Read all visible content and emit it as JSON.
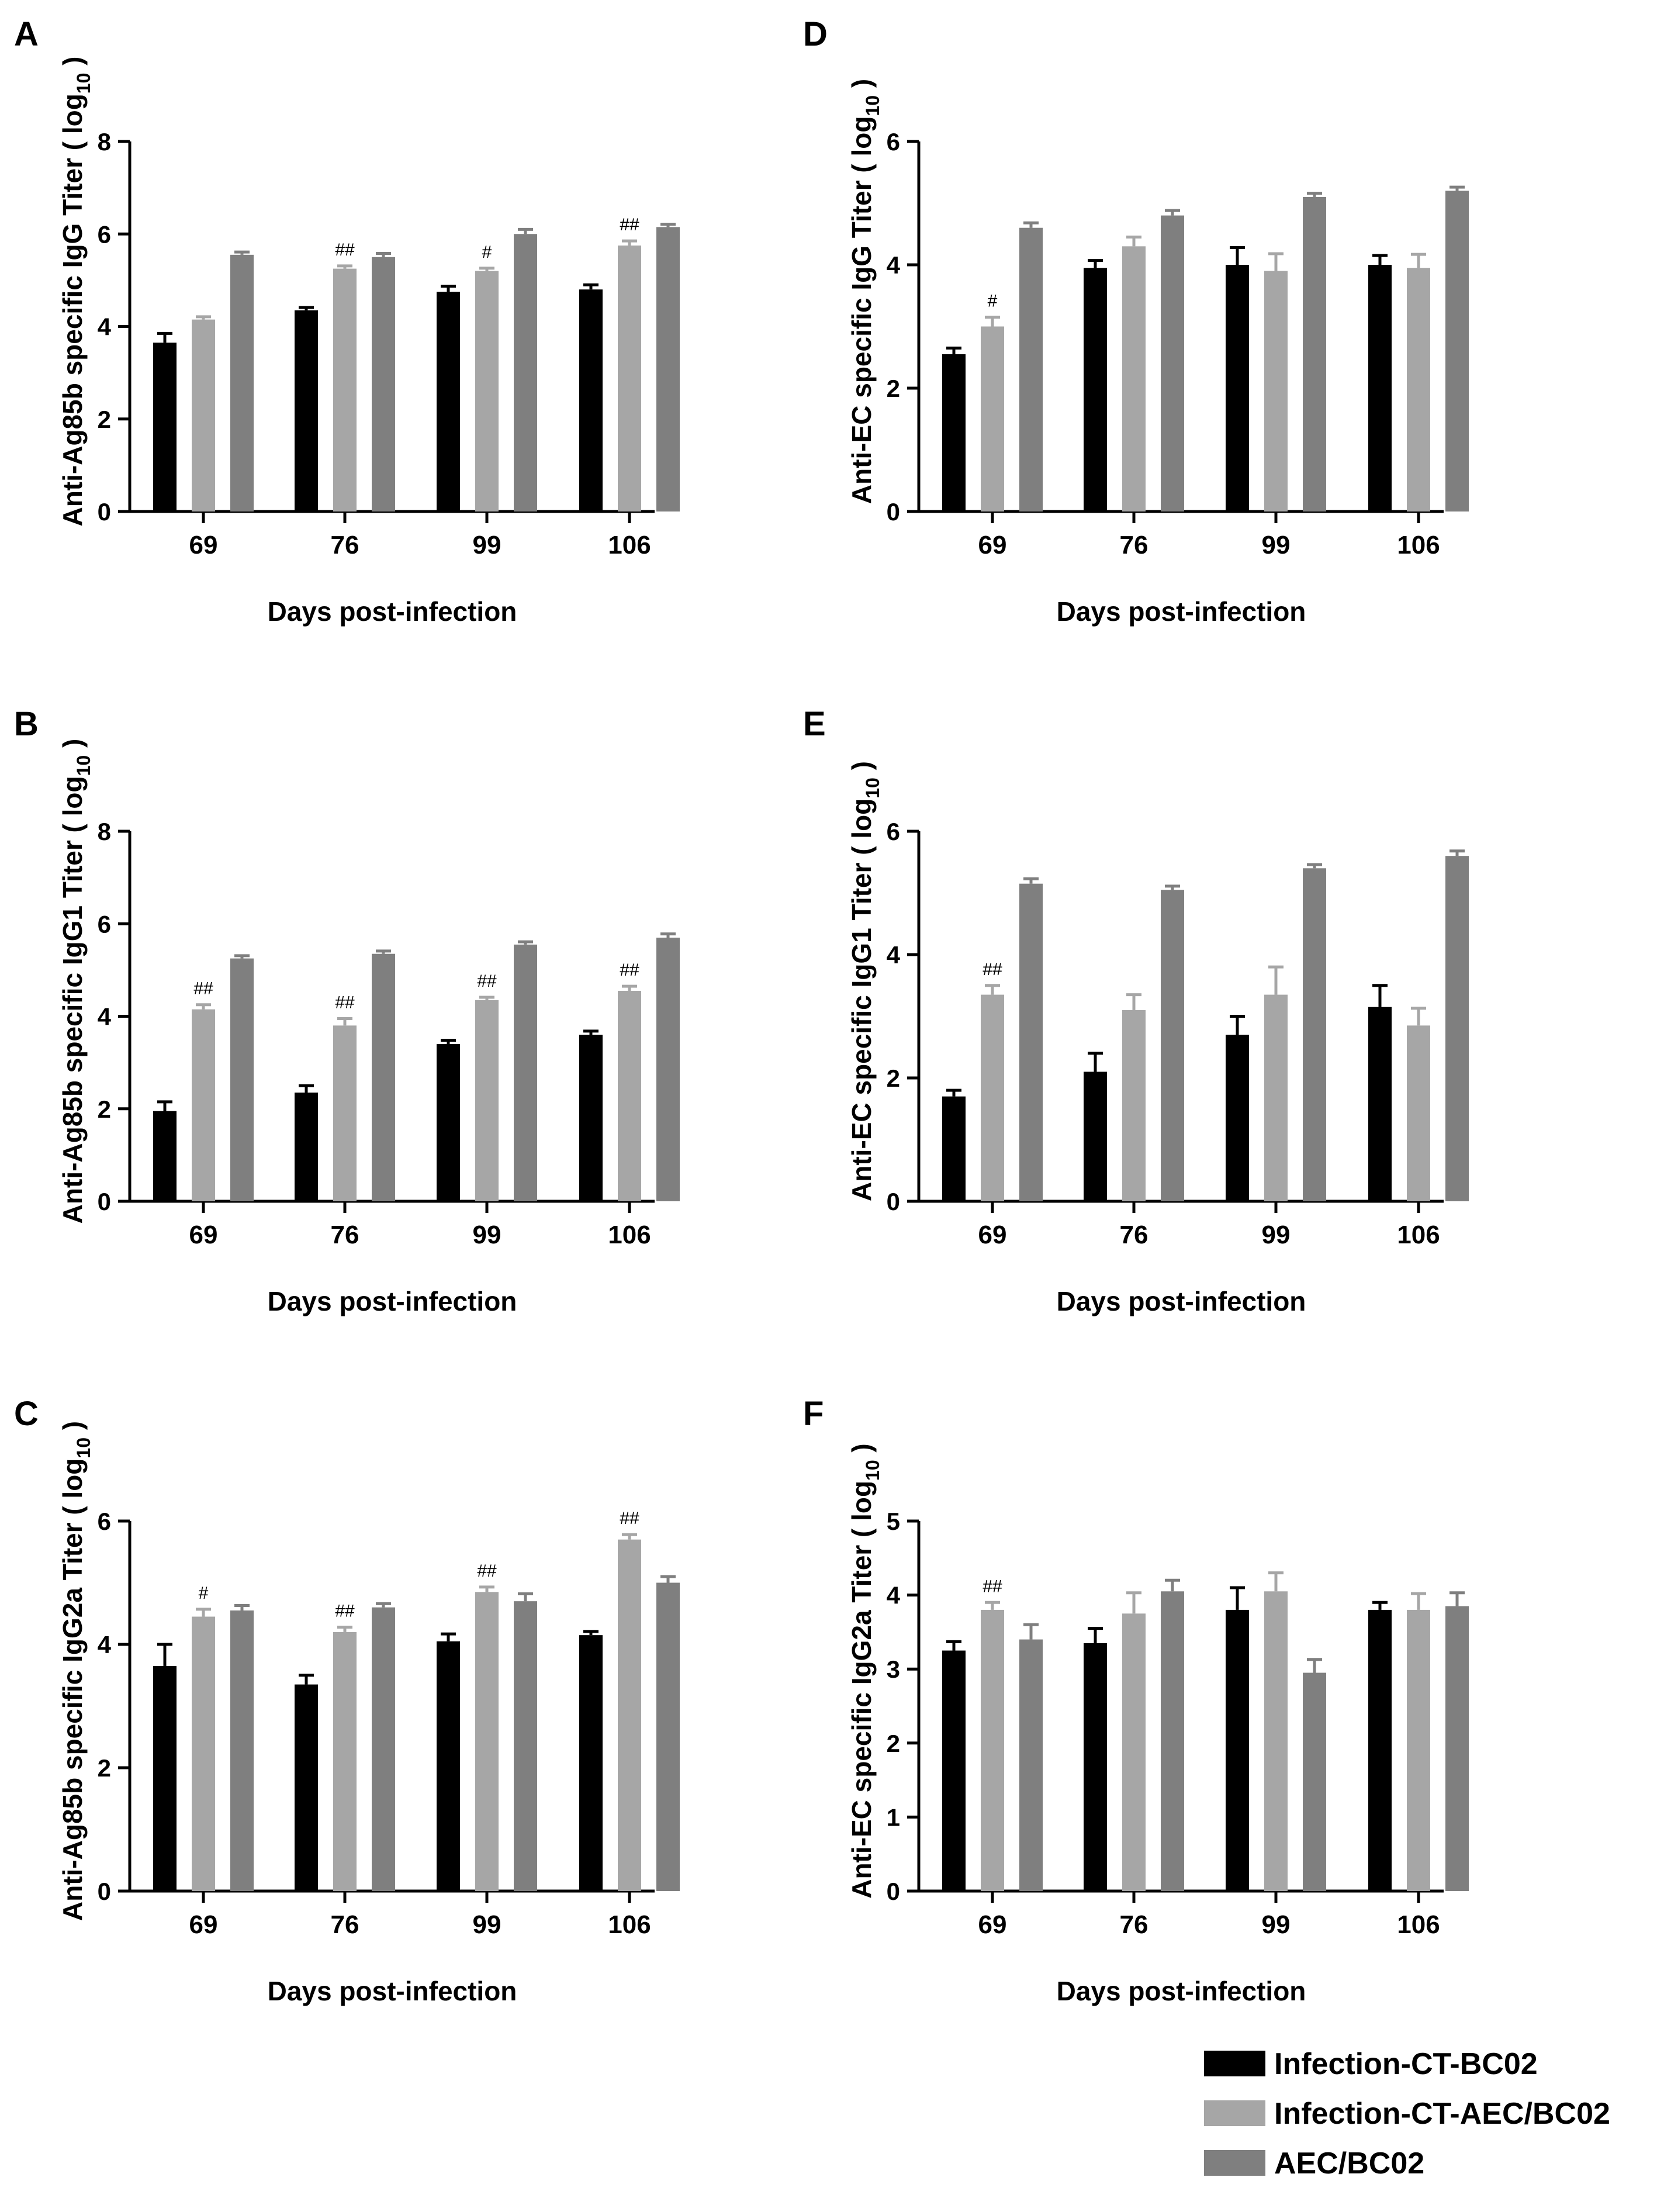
{
  "colors": {
    "Infection-CT-BC02": "#000000",
    "Infection-CT-AEC/BC02": "#a6a6a6",
    "AEC/BC02": "#7f7f7f"
  },
  "legend": {
    "items": [
      "Infection-CT-BC02",
      "Infection-CT-AEC/BC02",
      "AEC/BC02"
    ]
  },
  "chart_data": [
    {
      "panel": "A",
      "type": "bar",
      "title": "",
      "ylabel_main": "Anti-Ag85b specific IgG Titer ( log",
      "ylabel_sub": "10",
      "ylabel_end": " )",
      "xlabel": "Days post-infection",
      "categories": [
        "69",
        "76",
        "99",
        "106"
      ],
      "ylim": [
        0,
        8
      ],
      "yticks": [
        "0",
        "2",
        "4",
        "6",
        "8"
      ],
      "series": [
        {
          "name": "Infection-CT-BC02",
          "values": [
            3.65,
            4.35,
            4.75,
            4.8
          ],
          "errors": [
            0.2,
            0.06,
            0.12,
            0.1
          ]
        },
        {
          "name": "Infection-CT-AEC/BC02",
          "values": [
            4.15,
            5.25,
            5.2,
            5.75
          ],
          "errors": [
            0.06,
            0.06,
            0.06,
            0.1
          ]
        },
        {
          "name": "AEC/BC02",
          "values": [
            5.55,
            5.5,
            6.0,
            6.15
          ],
          "errors": [
            0.06,
            0.08,
            0.1,
            0.06
          ]
        }
      ],
      "annotations": [
        {
          "category": "76",
          "series": "Infection-CT-AEC/BC02",
          "text": "##"
        },
        {
          "category": "99",
          "series": "Infection-CT-AEC/BC02",
          "text": "#"
        },
        {
          "category": "106",
          "series": "Infection-CT-AEC/BC02",
          "text": "##"
        }
      ]
    },
    {
      "panel": "B",
      "type": "bar",
      "title": "",
      "ylabel_main": "Anti-Ag85b specific IgG1 Titer ( log",
      "ylabel_sub": "10",
      "ylabel_end": " )",
      "xlabel": "Days post-infection",
      "categories": [
        "69",
        "76",
        "99",
        "106"
      ],
      "ylim": [
        0,
        8
      ],
      "yticks": [
        "0",
        "2",
        "4",
        "6",
        "8"
      ],
      "series": [
        {
          "name": "Infection-CT-BC02",
          "values": [
            1.95,
            2.35,
            3.4,
            3.6
          ],
          "errors": [
            0.2,
            0.15,
            0.08,
            0.08
          ]
        },
        {
          "name": "Infection-CT-AEC/BC02",
          "values": [
            4.15,
            3.8,
            4.35,
            4.55
          ],
          "errors": [
            0.1,
            0.15,
            0.06,
            0.1
          ]
        },
        {
          "name": "AEC/BC02",
          "values": [
            5.25,
            5.35,
            5.55,
            5.7
          ],
          "errors": [
            0.06,
            0.06,
            0.06,
            0.08
          ]
        }
      ],
      "annotations": [
        {
          "category": "69",
          "series": "Infection-CT-AEC/BC02",
          "text": "##"
        },
        {
          "category": "76",
          "series": "Infection-CT-AEC/BC02",
          "text": "##"
        },
        {
          "category": "99",
          "series": "Infection-CT-AEC/BC02",
          "text": "##"
        },
        {
          "category": "106",
          "series": "Infection-CT-AEC/BC02",
          "text": "##"
        }
      ]
    },
    {
      "panel": "C",
      "type": "bar",
      "title": "",
      "ylabel_main": "Anti-Ag85b specific IgG2a Titer ( log",
      "ylabel_sub": "10",
      "ylabel_end": " )",
      "xlabel": "Days post-infection",
      "categories": [
        "69",
        "76",
        "99",
        "106"
      ],
      "ylim": [
        0,
        6
      ],
      "yticks": [
        "0",
        "2",
        "4",
        "6"
      ],
      "series": [
        {
          "name": "Infection-CT-BC02",
          "values": [
            3.65,
            3.35,
            4.05,
            4.15
          ],
          "errors": [
            0.35,
            0.15,
            0.12,
            0.06
          ]
        },
        {
          "name": "Infection-CT-AEC/BC02",
          "values": [
            4.45,
            4.2,
            4.85,
            5.7
          ],
          "errors": [
            0.12,
            0.08,
            0.08,
            0.08
          ]
        },
        {
          "name": "AEC/BC02",
          "values": [
            4.55,
            4.6,
            4.7,
            5.0
          ],
          "errors": [
            0.08,
            0.06,
            0.12,
            0.1
          ]
        }
      ],
      "annotations": [
        {
          "category": "69",
          "series": "Infection-CT-AEC/BC02",
          "text": "#"
        },
        {
          "category": "76",
          "series": "Infection-CT-AEC/BC02",
          "text": "##"
        },
        {
          "category": "99",
          "series": "Infection-CT-AEC/BC02",
          "text": "##"
        },
        {
          "category": "106",
          "series": "Infection-CT-AEC/BC02",
          "text": "##"
        }
      ]
    },
    {
      "panel": "D",
      "type": "bar",
      "title": "",
      "ylabel_main": "Anti-EC specific IgG Titer ( log",
      "ylabel_sub": "10",
      "ylabel_end": " )",
      "xlabel": "Days post-infection",
      "categories": [
        "69",
        "76",
        "99",
        "106"
      ],
      "ylim": [
        0,
        6
      ],
      "yticks": [
        "0",
        "2",
        "4",
        "6"
      ],
      "series": [
        {
          "name": "Infection-CT-BC02",
          "values": [
            2.55,
            3.95,
            4.0,
            4.0
          ],
          "errors": [
            0.1,
            0.12,
            0.28,
            0.15
          ]
        },
        {
          "name": "Infection-CT-AEC/BC02",
          "values": [
            3.0,
            4.3,
            3.9,
            3.95
          ],
          "errors": [
            0.15,
            0.15,
            0.28,
            0.22
          ]
        },
        {
          "name": "AEC/BC02",
          "values": [
            4.6,
            4.8,
            5.1,
            5.2
          ],
          "errors": [
            0.08,
            0.08,
            0.06,
            0.06
          ]
        }
      ],
      "annotations": [
        {
          "category": "69",
          "series": "Infection-CT-AEC/BC02",
          "text": "#"
        }
      ]
    },
    {
      "panel": "E",
      "type": "bar",
      "title": "",
      "ylabel_main": "Anti-EC specific IgG1 Titer ( log",
      "ylabel_sub": "10",
      "ylabel_end": " )",
      "xlabel": "Days post-infection",
      "categories": [
        "69",
        "76",
        "99",
        "106"
      ],
      "ylim": [
        0,
        6
      ],
      "yticks": [
        "0",
        "2",
        "4",
        "6"
      ],
      "series": [
        {
          "name": "Infection-CT-BC02",
          "values": [
            1.7,
            2.1,
            2.7,
            3.15
          ],
          "errors": [
            0.1,
            0.3,
            0.3,
            0.35
          ]
        },
        {
          "name": "Infection-CT-AEC/BC02",
          "values": [
            3.35,
            3.1,
            3.35,
            2.85
          ],
          "errors": [
            0.15,
            0.25,
            0.45,
            0.28
          ]
        },
        {
          "name": "AEC/BC02",
          "values": [
            5.15,
            5.05,
            5.4,
            5.6
          ],
          "errors": [
            0.08,
            0.06,
            0.06,
            0.08
          ]
        }
      ],
      "annotations": [
        {
          "category": "69",
          "series": "Infection-CT-AEC/BC02",
          "text": "##"
        }
      ]
    },
    {
      "panel": "F",
      "type": "bar",
      "title": "",
      "ylabel_main": "Anti-EC specific IgG2a Titer ( log",
      "ylabel_sub": "10",
      "ylabel_end": " )",
      "xlabel": "Days post-infection",
      "categories": [
        "69",
        "76",
        "99",
        "106"
      ],
      "ylim": [
        0,
        5
      ],
      "yticks": [
        "0",
        "1",
        "2",
        "3",
        "4",
        "5"
      ],
      "series": [
        {
          "name": "Infection-CT-BC02",
          "values": [
            3.25,
            3.35,
            3.8,
            3.8
          ],
          "errors": [
            0.12,
            0.2,
            0.3,
            0.1
          ]
        },
        {
          "name": "Infection-CT-AEC/BC02",
          "values": [
            3.8,
            3.75,
            4.05,
            3.8
          ],
          "errors": [
            0.1,
            0.28,
            0.25,
            0.22
          ]
        },
        {
          "name": "AEC/BC02",
          "values": [
            3.4,
            4.05,
            2.95,
            3.85
          ],
          "errors": [
            0.2,
            0.15,
            0.18,
            0.18
          ]
        }
      ],
      "annotations": [
        {
          "category": "69",
          "series": "Infection-CT-AEC/BC02",
          "text": "##"
        }
      ]
    }
  ]
}
